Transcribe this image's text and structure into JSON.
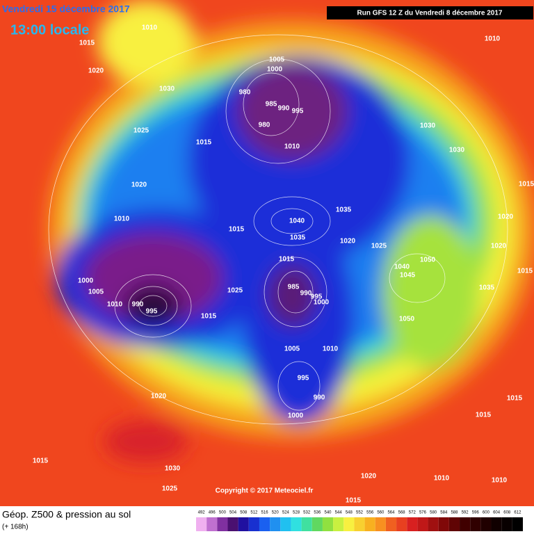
{
  "header": {
    "date": "Vendredi 15 décembre 2017",
    "time": "13:00 locale",
    "run": "Run GFS 12 Z du Vendredi 8 décembre 2017"
  },
  "footer": {
    "title": "Géop. Z500 & pression au sol",
    "lead": "(+ 168h)",
    "copyright": "Copyright © 2017 Meteociel.fr"
  },
  "legend": {
    "values": [
      492,
      496,
      500,
      504,
      508,
      512,
      516,
      520,
      524,
      528,
      532,
      536,
      540,
      544,
      548,
      552,
      556,
      560,
      564,
      568,
      572,
      576,
      580,
      584,
      588,
      592,
      596,
      600,
      604,
      608,
      612
    ]
  },
  "isobar_labels": [
    1010,
    1015,
    1020,
    1030,
    1025,
    1015,
    1020,
    1010,
    1005,
    1000,
    980,
    985,
    990,
    995,
    980,
    1010,
    1040,
    1035,
    1035,
    1020,
    1025,
    1015,
    1015,
    1030,
    1030,
    1010,
    1015,
    1020,
    1020,
    1015,
    1050,
    1040,
    1045,
    1035,
    1050,
    985,
    990,
    995,
    1000,
    1000,
    1005,
    1010,
    990,
    995,
    1025,
    1015,
    1005,
    1010,
    995,
    990,
    1000,
    1020,
    1015,
    1015,
    1015,
    1030,
    1025,
    1020,
    1010,
    1010,
    1015
  ]
}
